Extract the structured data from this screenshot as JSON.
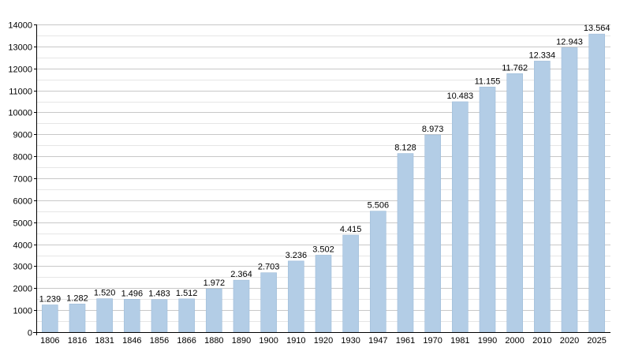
{
  "chart_data": {
    "type": "bar",
    "title": "",
    "xlabel": "",
    "ylabel": "",
    "ylim": [
      0,
      14000
    ],
    "y_ticks": [
      0,
      1000,
      2000,
      3000,
      4000,
      5000,
      6000,
      7000,
      8000,
      9000,
      10000,
      11000,
      12000,
      13000,
      14000
    ],
    "grid": true,
    "bar_color": "#b3cde6",
    "bar_edge_color": "#9fbcd9",
    "categories": [
      "1806",
      "1816",
      "1831",
      "1846",
      "1856",
      "1866",
      "1880",
      "1890",
      "1900",
      "1910",
      "1920",
      "1930",
      "1947",
      "1961",
      "1970",
      "1981",
      "1990",
      "2000",
      "2010",
      "2020",
      "2025"
    ],
    "values": [
      1239,
      1282,
      1520,
      1496,
      1483,
      1512,
      1972,
      2364,
      2703,
      3236,
      3502,
      4415,
      5506,
      8128,
      8973,
      10483,
      11155,
      11762,
      12334,
      12943,
      13564
    ],
    "value_labels": [
      "1.239",
      "1.282",
      "1.520",
      "1.496",
      "1.483",
      "1.512",
      "1.972",
      "2.364",
      "2.703",
      "3.236",
      "3.502",
      "4.415",
      "5.506",
      "8.128",
      "8.973",
      "10.483",
      "11.155",
      "11.762",
      "12.334",
      "12.943",
      "13.564"
    ]
  }
}
